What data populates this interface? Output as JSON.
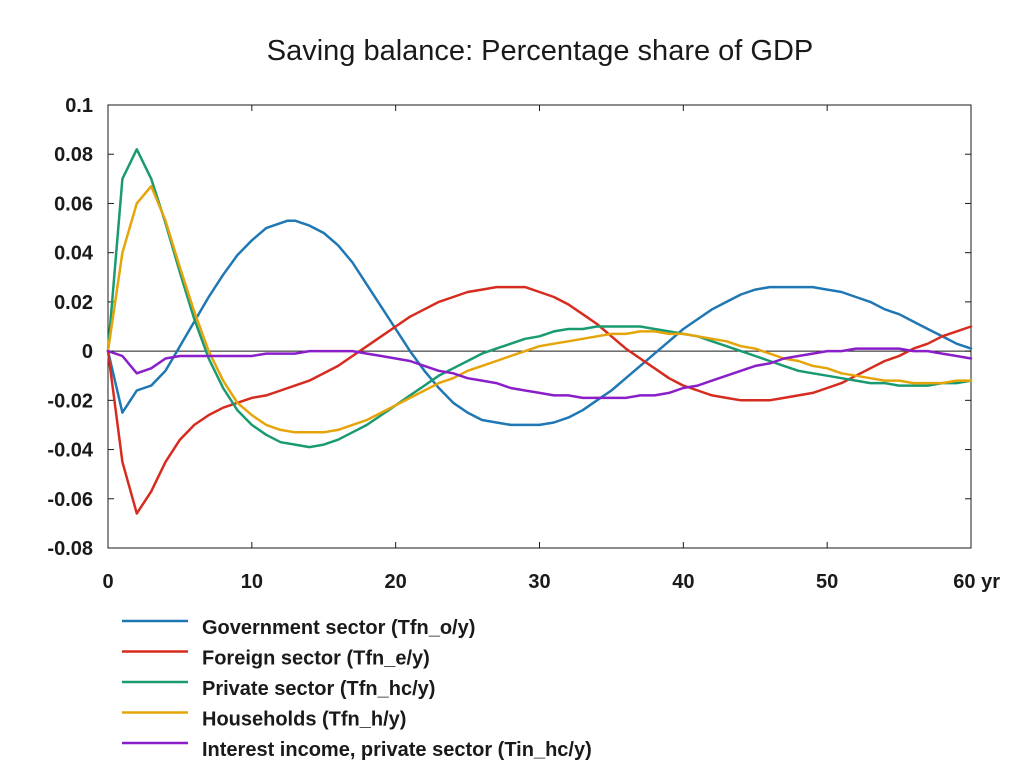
{
  "chart_data": {
    "type": "line",
    "title": "Saving balance: Percentage share of GDP",
    "xlim": [
      0,
      60
    ],
    "ylim": [
      -0.08,
      0.1
    ],
    "x_ticks": [
      0,
      10,
      20,
      30,
      40,
      50,
      60
    ],
    "x_tick_labels": [
      "0",
      "10",
      "20",
      "30",
      "40",
      "50",
      "60 yr"
    ],
    "y_ticks": [
      0.1,
      0.08,
      0.06,
      0.04,
      0.02,
      0,
      -0.02,
      -0.04,
      -0.06,
      -0.08
    ],
    "y_tick_labels": [
      "0.1",
      "0.08",
      "0.06",
      "0.04",
      "0.02",
      "0",
      "-0.02",
      "-0.04",
      "-0.06",
      "-0.08"
    ],
    "grid": false,
    "zero_line": true,
    "legend_position": "bottom",
    "series": [
      {
        "name": "Government sector (Tfn_o/y)",
        "color": "#1f77b4",
        "points": [
          [
            0,
            0
          ],
          [
            1,
            -0.025
          ],
          [
            2,
            -0.016
          ],
          [
            3,
            -0.014
          ],
          [
            4,
            -0.008
          ],
          [
            5,
            0.002
          ],
          [
            6,
            0.012
          ],
          [
            7,
            0.022
          ],
          [
            8,
            0.031
          ],
          [
            9,
            0.039
          ],
          [
            10,
            0.045
          ],
          [
            11,
            0.05
          ],
          [
            12,
            0.052
          ],
          [
            12.5,
            0.053
          ],
          [
            13,
            0.053
          ],
          [
            14,
            0.051
          ],
          [
            15,
            0.048
          ],
          [
            16,
            0.043
          ],
          [
            17,
            0.036
          ],
          [
            18,
            0.027
          ],
          [
            19,
            0.018
          ],
          [
            20,
            0.009
          ],
          [
            21,
            0
          ],
          [
            22,
            -0.008
          ],
          [
            23,
            -0.015
          ],
          [
            24,
            -0.021
          ],
          [
            25,
            -0.025
          ],
          [
            26,
            -0.028
          ],
          [
            27,
            -0.029
          ],
          [
            28,
            -0.03
          ],
          [
            29,
            -0.03
          ],
          [
            30,
            -0.03
          ],
          [
            31,
            -0.029
          ],
          [
            32,
            -0.027
          ],
          [
            33,
            -0.024
          ],
          [
            34,
            -0.02
          ],
          [
            35,
            -0.016
          ],
          [
            36,
            -0.011
          ],
          [
            37,
            -0.006
          ],
          [
            38,
            -0.001
          ],
          [
            39,
            0.004
          ],
          [
            40,
            0.009
          ],
          [
            41,
            0.013
          ],
          [
            42,
            0.017
          ],
          [
            43,
            0.02
          ],
          [
            44,
            0.023
          ],
          [
            45,
            0.025
          ],
          [
            46,
            0.026
          ],
          [
            47,
            0.026
          ],
          [
            48,
            0.026
          ],
          [
            49,
            0.026
          ],
          [
            50,
            0.025
          ],
          [
            51,
            0.024
          ],
          [
            52,
            0.022
          ],
          [
            53,
            0.02
          ],
          [
            54,
            0.017
          ],
          [
            55,
            0.015
          ],
          [
            56,
            0.012
          ],
          [
            57,
            0.009
          ],
          [
            58,
            0.006
          ],
          [
            59,
            0.003
          ],
          [
            60,
            0.001
          ]
        ]
      },
      {
        "name": "Foreign sector (Tfn_e/y)",
        "color": "#d62c1f",
        "points": [
          [
            0,
            0
          ],
          [
            1,
            -0.045
          ],
          [
            2,
            -0.066
          ],
          [
            3,
            -0.057
          ],
          [
            4,
            -0.045
          ],
          [
            5,
            -0.036
          ],
          [
            6,
            -0.03
          ],
          [
            7,
            -0.026
          ],
          [
            8,
            -0.023
          ],
          [
            9,
            -0.021
          ],
          [
            10,
            -0.019
          ],
          [
            11,
            -0.018
          ],
          [
            12,
            -0.016
          ],
          [
            13,
            -0.014
          ],
          [
            14,
            -0.012
          ],
          [
            15,
            -0.009
          ],
          [
            16,
            -0.006
          ],
          [
            17,
            -0.002
          ],
          [
            18,
            0.002
          ],
          [
            19,
            0.006
          ],
          [
            20,
            0.01
          ],
          [
            21,
            0.014
          ],
          [
            22,
            0.017
          ],
          [
            23,
            0.02
          ],
          [
            24,
            0.022
          ],
          [
            25,
            0.024
          ],
          [
            26,
            0.025
          ],
          [
            27,
            0.026
          ],
          [
            28,
            0.026
          ],
          [
            29,
            0.026
          ],
          [
            30,
            0.024
          ],
          [
            31,
            0.022
          ],
          [
            32,
            0.019
          ],
          [
            33,
            0.015
          ],
          [
            34,
            0.011
          ],
          [
            35,
            0.006
          ],
          [
            36,
            0.001
          ],
          [
            37,
            -0.003
          ],
          [
            38,
            -0.007
          ],
          [
            39,
            -0.011
          ],
          [
            40,
            -0.014
          ],
          [
            41,
            -0.016
          ],
          [
            42,
            -0.018
          ],
          [
            43,
            -0.019
          ],
          [
            44,
            -0.02
          ],
          [
            45,
            -0.02
          ],
          [
            46,
            -0.02
          ],
          [
            47,
            -0.019
          ],
          [
            48,
            -0.018
          ],
          [
            49,
            -0.017
          ],
          [
            50,
            -0.015
          ],
          [
            51,
            -0.013
          ],
          [
            52,
            -0.01
          ],
          [
            53,
            -0.007
          ],
          [
            54,
            -0.004
          ],
          [
            55,
            -0.002
          ],
          [
            56,
            0.001
          ],
          [
            57,
            0.003
          ],
          [
            58,
            0.006
          ],
          [
            59,
            0.008
          ],
          [
            60,
            0.01
          ]
        ]
      },
      {
        "name": "Private sector (Tfn_hc/y)",
        "color": "#1a9a72",
        "points": [
          [
            0,
            0
          ],
          [
            1,
            0.07
          ],
          [
            2,
            0.082
          ],
          [
            3,
            0.07
          ],
          [
            4,
            0.052
          ],
          [
            5,
            0.032
          ],
          [
            6,
            0.013
          ],
          [
            7,
            -0.003
          ],
          [
            8,
            -0.015
          ],
          [
            9,
            -0.024
          ],
          [
            10,
            -0.03
          ],
          [
            11,
            -0.034
          ],
          [
            12,
            -0.037
          ],
          [
            13,
            -0.038
          ],
          [
            14,
            -0.039
          ],
          [
            15,
            -0.038
          ],
          [
            16,
            -0.036
          ],
          [
            17,
            -0.033
          ],
          [
            18,
            -0.03
          ],
          [
            19,
            -0.026
          ],
          [
            20,
            -0.022
          ],
          [
            21,
            -0.018
          ],
          [
            22,
            -0.014
          ],
          [
            23,
            -0.01
          ],
          [
            24,
            -0.007
          ],
          [
            25,
            -0.004
          ],
          [
            26,
            -0.001
          ],
          [
            27,
            0.001
          ],
          [
            28,
            0.003
          ],
          [
            29,
            0.005
          ],
          [
            30,
            0.006
          ],
          [
            31,
            0.008
          ],
          [
            32,
            0.009
          ],
          [
            33,
            0.009
          ],
          [
            34,
            0.01
          ],
          [
            35,
            0.01
          ],
          [
            36,
            0.01
          ],
          [
            37,
            0.01
          ],
          [
            38,
            0.009
          ],
          [
            39,
            0.008
          ],
          [
            40,
            0.007
          ],
          [
            41,
            0.006
          ],
          [
            42,
            0.004
          ],
          [
            43,
            0.002
          ],
          [
            44,
            0
          ],
          [
            45,
            -0.002
          ],
          [
            46,
            -0.004
          ],
          [
            47,
            -0.006
          ],
          [
            48,
            -0.008
          ],
          [
            49,
            -0.009
          ],
          [
            50,
            -0.01
          ],
          [
            51,
            -0.011
          ],
          [
            52,
            -0.012
          ],
          [
            53,
            -0.013
          ],
          [
            54,
            -0.013
          ],
          [
            55,
            -0.014
          ],
          [
            56,
            -0.014
          ],
          [
            57,
            -0.014
          ],
          [
            58,
            -0.013
          ],
          [
            59,
            -0.013
          ],
          [
            60,
            -0.012
          ]
        ]
      },
      {
        "name": "Households (Tfn_h/y)",
        "color": "#e5a50a",
        "points": [
          [
            0,
            0
          ],
          [
            1,
            0.04
          ],
          [
            2,
            0.06
          ],
          [
            3,
            0.067
          ],
          [
            4,
            0.053
          ],
          [
            5,
            0.034
          ],
          [
            6,
            0.016
          ],
          [
            7,
            0
          ],
          [
            8,
            -0.012
          ],
          [
            9,
            -0.021
          ],
          [
            10,
            -0.026
          ],
          [
            11,
            -0.03
          ],
          [
            12,
            -0.032
          ],
          [
            13,
            -0.033
          ],
          [
            14,
            -0.033
          ],
          [
            15,
            -0.033
          ],
          [
            16,
            -0.032
          ],
          [
            17,
            -0.03
          ],
          [
            18,
            -0.028
          ],
          [
            19,
            -0.025
          ],
          [
            20,
            -0.022
          ],
          [
            21,
            -0.019
          ],
          [
            22,
            -0.016
          ],
          [
            23,
            -0.013
          ],
          [
            24,
            -0.011
          ],
          [
            25,
            -0.008
          ],
          [
            26,
            -0.006
          ],
          [
            27,
            -0.004
          ],
          [
            28,
            -0.002
          ],
          [
            29,
            0
          ],
          [
            30,
            0.002
          ],
          [
            31,
            0.003
          ],
          [
            32,
            0.004
          ],
          [
            33,
            0.005
          ],
          [
            34,
            0.006
          ],
          [
            35,
            0.007
          ],
          [
            36,
            0.007
          ],
          [
            37,
            0.008
          ],
          [
            38,
            0.008
          ],
          [
            39,
            0.007
          ],
          [
            40,
            0.007
          ],
          [
            41,
            0.006
          ],
          [
            42,
            0.005
          ],
          [
            43,
            0.004
          ],
          [
            44,
            0.002
          ],
          [
            45,
            0.001
          ],
          [
            46,
            -0.001
          ],
          [
            47,
            -0.003
          ],
          [
            48,
            -0.004
          ],
          [
            49,
            -0.006
          ],
          [
            50,
            -0.007
          ],
          [
            51,
            -0.009
          ],
          [
            52,
            -0.01
          ],
          [
            53,
            -0.011
          ],
          [
            54,
            -0.012
          ],
          [
            55,
            -0.012
          ],
          [
            56,
            -0.013
          ],
          [
            57,
            -0.013
          ],
          [
            58,
            -0.013
          ],
          [
            59,
            -0.012
          ],
          [
            60,
            -0.012
          ]
        ]
      },
      {
        "name": "Interest income, private sector (Tin_hc/y)",
        "color": "#8a1fc9",
        "points": [
          [
            0,
            0
          ],
          [
            1,
            -0.002
          ],
          [
            2,
            -0.009
          ],
          [
            3,
            -0.007
          ],
          [
            4,
            -0.003
          ],
          [
            5,
            -0.002
          ],
          [
            6,
            -0.002
          ],
          [
            7,
            -0.002
          ],
          [
            8,
            -0.002
          ],
          [
            9,
            -0.002
          ],
          [
            10,
            -0.002
          ],
          [
            11,
            -0.001
          ],
          [
            12,
            -0.001
          ],
          [
            13,
            -0.001
          ],
          [
            14,
            0
          ],
          [
            15,
            0
          ],
          [
            16,
            0
          ],
          [
            17,
            0
          ],
          [
            18,
            -0.001
          ],
          [
            19,
            -0.002
          ],
          [
            20,
            -0.003
          ],
          [
            21,
            -0.004
          ],
          [
            22,
            -0.006
          ],
          [
            23,
            -0.008
          ],
          [
            24,
            -0.009
          ],
          [
            25,
            -0.011
          ],
          [
            26,
            -0.012
          ],
          [
            27,
            -0.013
          ],
          [
            28,
            -0.015
          ],
          [
            29,
            -0.016
          ],
          [
            30,
            -0.017
          ],
          [
            31,
            -0.018
          ],
          [
            32,
            -0.018
          ],
          [
            33,
            -0.019
          ],
          [
            34,
            -0.019
          ],
          [
            35,
            -0.019
          ],
          [
            36,
            -0.019
          ],
          [
            37,
            -0.018
          ],
          [
            38,
            -0.018
          ],
          [
            39,
            -0.017
          ],
          [
            40,
            -0.015
          ],
          [
            41,
            -0.014
          ],
          [
            42,
            -0.012
          ],
          [
            43,
            -0.01
          ],
          [
            44,
            -0.008
          ],
          [
            45,
            -0.006
          ],
          [
            46,
            -0.005
          ],
          [
            47,
            -0.003
          ],
          [
            48,
            -0.002
          ],
          [
            49,
            -0.001
          ],
          [
            50,
            0
          ],
          [
            51,
            0
          ],
          [
            52,
            0.001
          ],
          [
            53,
            0.001
          ],
          [
            54,
            0.001
          ],
          [
            55,
            0.001
          ],
          [
            56,
            0
          ],
          [
            57,
            0
          ],
          [
            58,
            -0.001
          ],
          [
            59,
            -0.002
          ],
          [
            60,
            -0.003
          ]
        ]
      }
    ]
  }
}
